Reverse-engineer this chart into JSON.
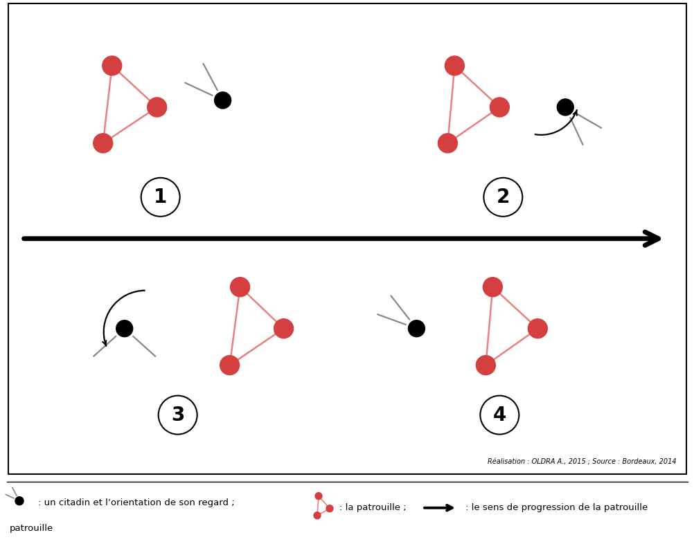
{
  "credit": "Réalisation : OLDRA A., 2015 ; Source : Bordeaux, 2014",
  "legend_text1": ": un citadin et l’orientation de son regard ;",
  "legend_text2": ": la patrouille ;",
  "legend_text3": ": le sens de progression de la patrouille",
  "bg_color": "#ffffff",
  "patrol_color": "#d44040",
  "civilian_color": "#000000",
  "gaze_color": "#888888",
  "patrol_line_color": "#e88080"
}
